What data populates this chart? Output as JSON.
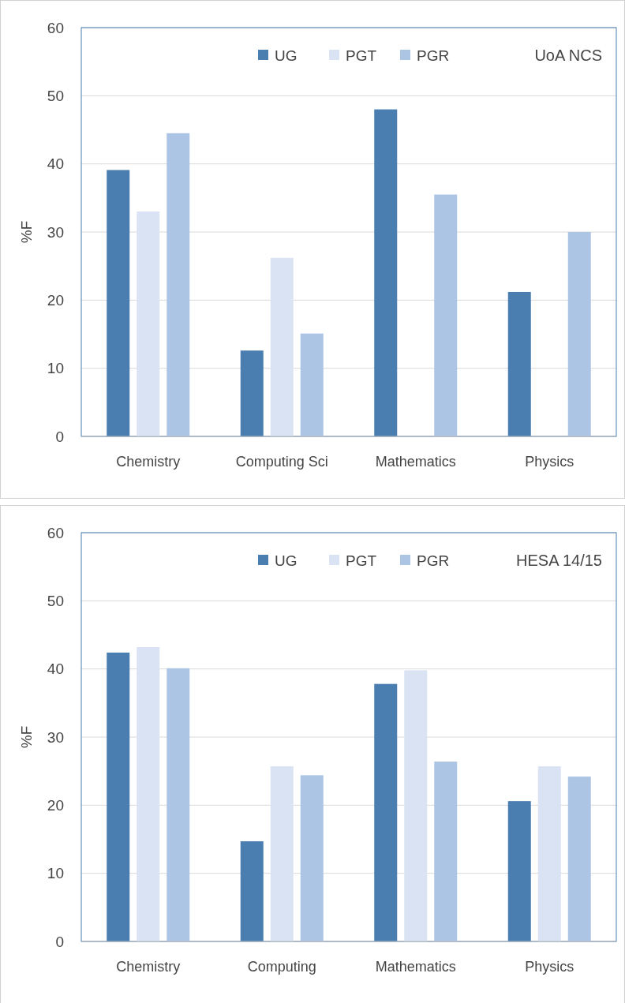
{
  "chart_data": [
    {
      "type": "bar",
      "categories": [
        "Chemistry",
        "Computing Sci",
        "Mathematics",
        "Physics"
      ],
      "ylabel": "%F",
      "ylim": [
        0,
        60
      ],
      "yticks": [
        0,
        10,
        20,
        30,
        40,
        50,
        60
      ],
      "grid": "y",
      "legend": "top",
      "annotations": [
        "UoA NCS"
      ],
      "series": [
        {
          "name": "UG",
          "color": "#4a7eb0",
          "values": [
            39.1,
            12.6,
            48.0,
            21.2
          ]
        },
        {
          "name": "PGT",
          "color": "#dae3f3",
          "values": [
            33.0,
            26.2,
            0,
            0
          ]
        },
        {
          "name": "PGR",
          "color": "#adc5e5",
          "values": [
            44.5,
            15.1,
            35.5,
            30.0
          ]
        }
      ]
    },
    {
      "type": "bar",
      "categories": [
        "Chemistry",
        "Computing",
        "Mathematics",
        "Physics"
      ],
      "ylabel": "%F",
      "ylim": [
        0,
        60
      ],
      "yticks": [
        0,
        10,
        20,
        30,
        40,
        50,
        60
      ],
      "grid": "y",
      "legend": "top",
      "annotations": [
        "HESA 14/15"
      ],
      "series": [
        {
          "name": "UG",
          "color": "#4a7eb0",
          "values": [
            42.4,
            14.7,
            37.8,
            20.6
          ]
        },
        {
          "name": "PGT",
          "color": "#dae3f3",
          "values": [
            43.2,
            25.7,
            39.8,
            25.7
          ]
        },
        {
          "name": "PGR",
          "color": "#adc5e5",
          "values": [
            40.1,
            24.4,
            26.4,
            24.2
          ]
        }
      ]
    }
  ]
}
